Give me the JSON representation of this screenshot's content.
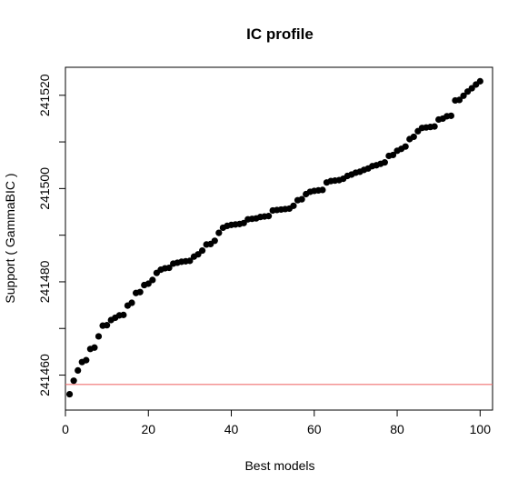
{
  "chart_data": {
    "type": "scatter",
    "title": "IC profile",
    "xlabel": "Best models",
    "ylabel": "Support ( GammaBIC )",
    "xlim": [
      0,
      103
    ],
    "ylim": [
      241452.5,
      241526
    ],
    "x_ticks": [
      0,
      20,
      40,
      60,
      80,
      100
    ],
    "x_tick_labels": [
      "0",
      "20",
      "40",
      "60",
      "80",
      "100"
    ],
    "y_ticks": [
      241460,
      241480,
      241500,
      241520
    ],
    "y_tick_labels": [
      "241460",
      "241480",
      "241500",
      "241520"
    ],
    "grid": false,
    "reference_line": {
      "y": 241458.0,
      "color": "#f07070"
    },
    "point_color": "#000000",
    "series": [
      {
        "x": [
          1,
          2,
          3,
          4,
          5,
          6,
          7,
          8,
          9,
          10,
          11,
          12,
          13,
          14,
          15,
          16,
          17,
          18,
          19,
          20,
          21,
          22,
          23,
          24,
          25,
          26,
          27,
          28,
          29,
          30,
          31,
          32,
          33,
          34,
          35,
          36,
          37,
          38,
          39,
          40,
          41,
          42,
          43,
          44,
          45,
          46,
          47,
          48,
          49,
          50,
          51,
          52,
          53,
          54,
          55,
          56,
          57,
          58,
          59,
          60,
          61,
          62,
          63,
          64,
          65,
          66,
          67,
          68,
          69,
          70,
          71,
          72,
          73,
          74,
          75,
          76,
          77,
          78,
          79,
          80,
          81,
          82,
          83,
          84,
          85,
          86,
          87,
          88,
          89,
          90,
          91,
          92,
          93,
          94,
          95,
          96,
          97,
          98,
          99,
          100
        ],
        "y": [
          241455.9,
          241458.8,
          241461.0,
          241462.8,
          241463.2,
          241465.6,
          241465.9,
          241468.3,
          241470.6,
          241470.7,
          241471.8,
          241472.3,
          241472.8,
          241472.9,
          241474.9,
          241475.5,
          241477.6,
          241477.8,
          241479.3,
          241479.6,
          241480.4,
          241481.9,
          241482.6,
          241482.9,
          241483.0,
          241483.9,
          241484.1,
          241484.3,
          241484.4,
          241484.5,
          241485.4,
          241485.9,
          241486.7,
          241488.0,
          241488.1,
          241488.8,
          241490.5,
          241491.6,
          241492.0,
          241492.2,
          241492.3,
          241492.4,
          241492.6,
          241493.4,
          241493.5,
          241493.6,
          241493.9,
          241494.0,
          241494.1,
          241495.3,
          241495.4,
          241495.5,
          241495.6,
          241495.7,
          241496.3,
          241497.5,
          241497.7,
          241498.8,
          241499.3,
          241499.5,
          241499.6,
          241499.7,
          241501.3,
          241501.6,
          241501.7,
          241501.8,
          241502.1,
          241502.7,
          241503.0,
          241503.4,
          241503.6,
          241504.0,
          241504.3,
          241504.8,
          241505.0,
          241505.3,
          241505.6,
          241507.0,
          241507.2,
          241508.1,
          241508.5,
          241509.0,
          241510.6,
          241511.1,
          241512.3,
          241513.0,
          241513.1,
          241513.2,
          241513.3,
          241514.8,
          241515.0,
          241515.5,
          241515.6,
          241518.9,
          241519.0,
          241519.9,
          241520.8,
          241521.5,
          241522.3,
          241523.0
        ]
      }
    ]
  }
}
